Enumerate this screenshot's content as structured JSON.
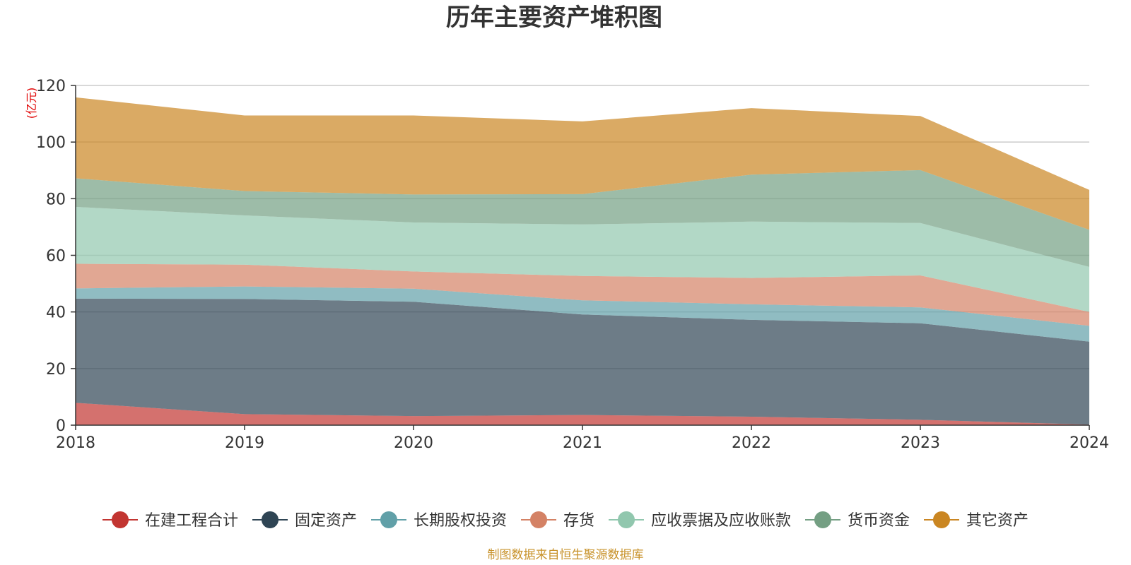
{
  "chart_data": {
    "type": "area",
    "stacked": true,
    "title": "历年主要资产堆积图",
    "unit_label": "(亿元)",
    "source": "制图数据来自恒生聚源数据库",
    "x": [
      "2018",
      "2019",
      "2020",
      "2021",
      "2022",
      "2023",
      "2024"
    ],
    "ylim": [
      0,
      120
    ],
    "yticks": [
      0,
      20,
      40,
      60,
      80,
      100,
      120
    ],
    "grid": true,
    "legend_position": "bottom",
    "series": [
      {
        "name": "在建工程合计",
        "color": "#c23531",
        "values": [
          7.9,
          3.9,
          3.2,
          3.6,
          3.0,
          1.9,
          0.2
        ]
      },
      {
        "name": "固定资产",
        "color": "#2f4554",
        "values": [
          36.8,
          40.7,
          40.4,
          35.5,
          34.2,
          34.1,
          29.3
        ]
      },
      {
        "name": "长期股权投资",
        "color": "#61a0a8",
        "values": [
          3.6,
          4.4,
          4.6,
          5.0,
          5.5,
          5.6,
          5.6
        ]
      },
      {
        "name": "存货",
        "color": "#d48265",
        "values": [
          8.7,
          7.7,
          6.1,
          8.6,
          9.3,
          11.3,
          4.9
        ]
      },
      {
        "name": "应收票据及应收账款",
        "color": "#91c7ae",
        "values": [
          20.1,
          17.4,
          17.3,
          18.2,
          19.9,
          18.5,
          15.9
        ]
      },
      {
        "name": "货币资金",
        "color": "#749f83",
        "values": [
          10.1,
          8.6,
          9.9,
          10.7,
          16.6,
          18.7,
          13.1
        ]
      },
      {
        "name": "其它资产",
        "color": "#ca8622",
        "values": [
          28.6,
          26.7,
          27.9,
          25.7,
          23.5,
          19.1,
          14.1
        ]
      }
    ]
  }
}
